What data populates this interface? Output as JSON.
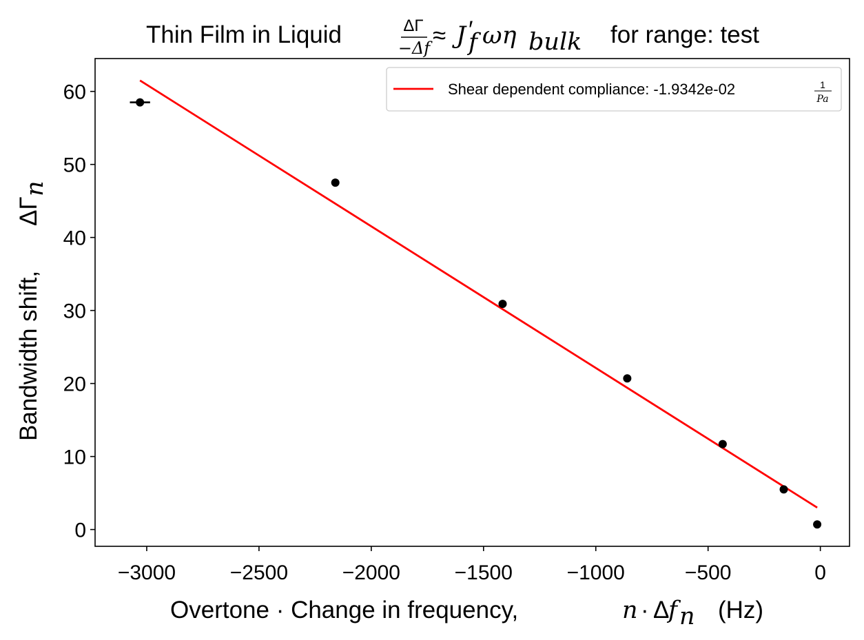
{
  "chart_data": {
    "type": "scatter",
    "title": {
      "prefix": "Thin Film in Liquid",
      "frac_num": "ΔΓ",
      "frac_den": "−Δf",
      "approx": "≈",
      "J": "J",
      "prime": "′",
      "J_sub": "f",
      "omega_eta": "ωη",
      "eta_sub": "bulk",
      "suffix": "for range: test"
    },
    "xlabel": {
      "prefix": "Overtone · Change in frequency,",
      "n": "n",
      "dot": "·",
      "delta": "Δ",
      "f": "f",
      "f_sub": "n",
      "unit": "(Hz)"
    },
    "ylabel": {
      "prefix": "Bandwidth shift,",
      "symbol": "ΔΓ",
      "sub": "n"
    },
    "xlim": [
      -3230,
      130
    ],
    "ylim": [
      -2.3,
      64.5
    ],
    "x_ticks": [
      -3000,
      -2500,
      -2000,
      -1500,
      -1000,
      -500,
      0
    ],
    "x_tick_labels": [
      "−3000",
      "−2500",
      "−2000",
      "−1500",
      "−1000",
      "−500",
      "0"
    ],
    "y_ticks": [
      0,
      10,
      20,
      30,
      40,
      50,
      60
    ],
    "y_tick_labels": [
      "0",
      "10",
      "20",
      "30",
      "40",
      "50",
      "60"
    ],
    "grid": false,
    "legend": {
      "position": "top-right",
      "label": "Shear dependent compliance: -1.9342e-02",
      "unit_num": "1",
      "unit_den": "Pa"
    },
    "series": [
      {
        "kind": "points",
        "color": "#000000",
        "x": [
          -3030,
          -2160,
          -1415,
          -860,
          -435,
          -163,
          -14
        ],
        "y": [
          58.5,
          47.5,
          30.9,
          20.7,
          11.7,
          5.5,
          0.7
        ],
        "xerr": [
          45,
          0,
          0,
          0,
          0,
          0,
          0
        ]
      },
      {
        "kind": "fit_line",
        "color": "#ff0000",
        "x": [
          -3030,
          -14
        ],
        "y": [
          61.5,
          3.0
        ]
      }
    ]
  }
}
